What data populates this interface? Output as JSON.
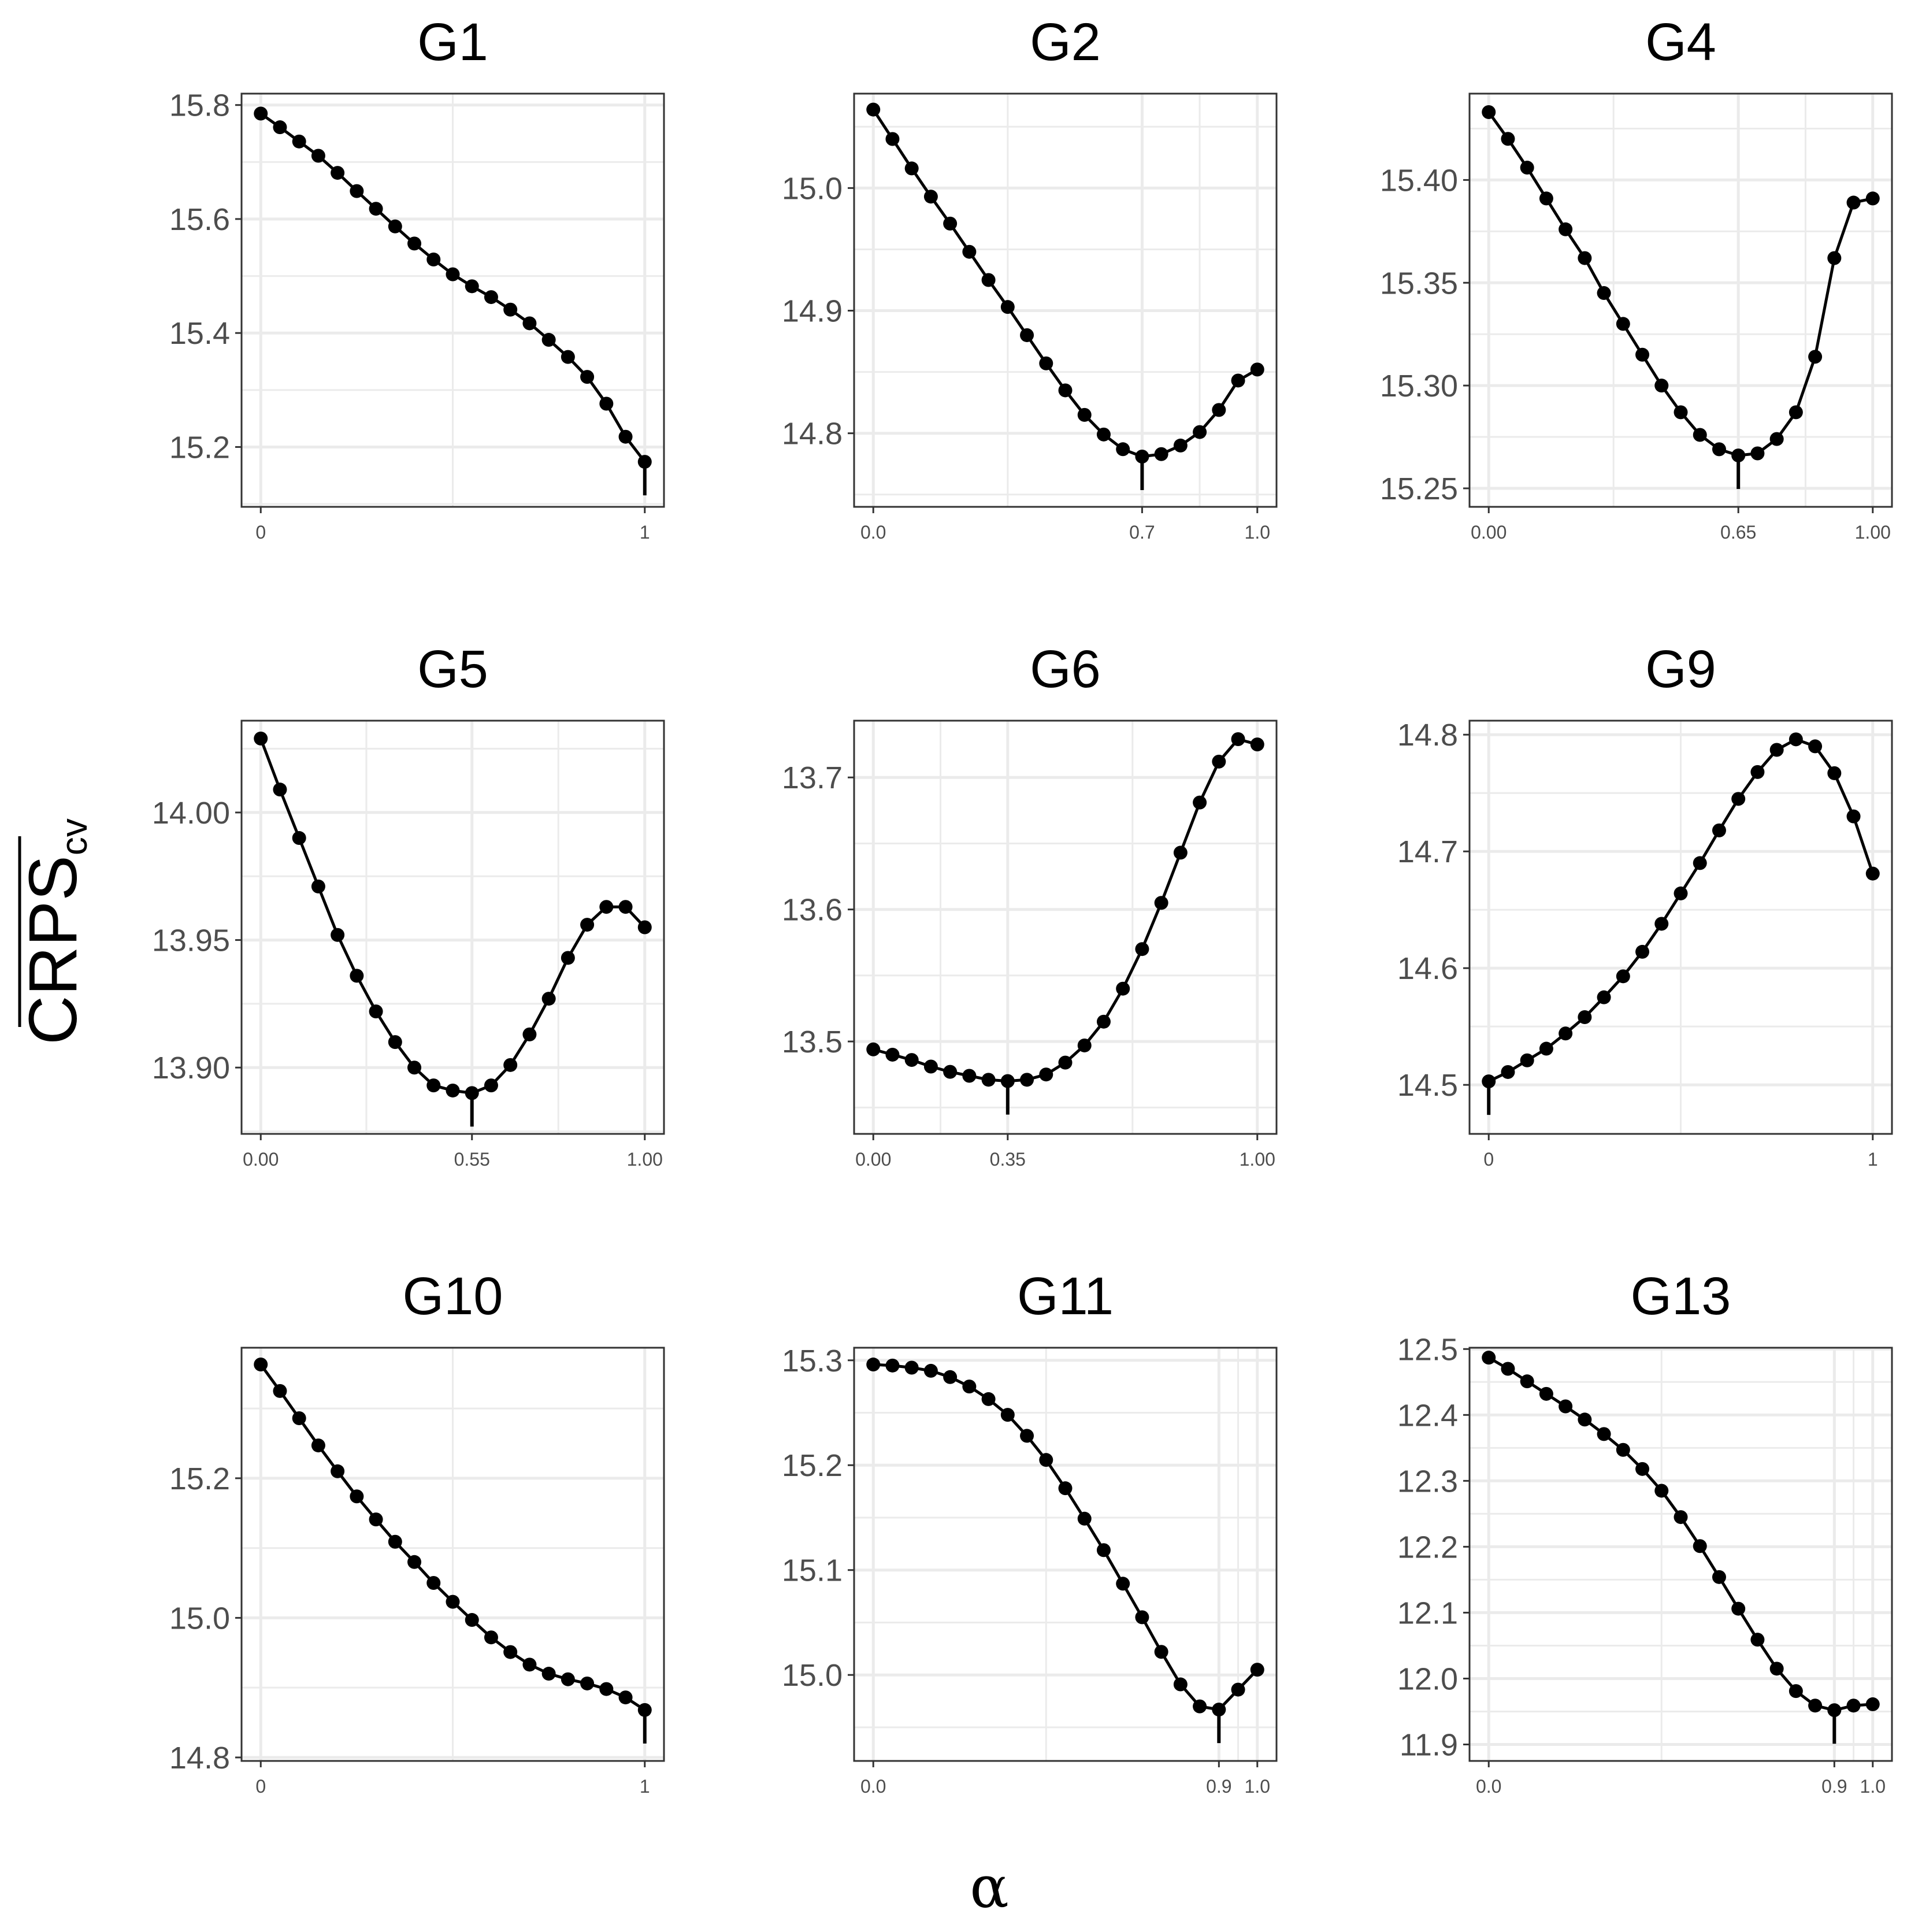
{
  "figure": {
    "y_label": "CRPS",
    "y_label_subscript": "cv",
    "x_label": "α"
  },
  "chart_data": [
    {
      "type": "line",
      "title": "G1",
      "x": [
        0,
        0.05,
        0.1,
        0.15,
        0.2,
        0.25,
        0.3,
        0.35,
        0.4,
        0.45,
        0.5,
        0.55,
        0.6,
        0.65,
        0.7,
        0.75,
        0.8,
        0.85,
        0.9,
        0.95,
        1
      ],
      "values": [
        15.785,
        15.761,
        15.736,
        15.711,
        15.681,
        15.649,
        15.618,
        15.587,
        15.557,
        15.529,
        15.503,
        15.482,
        15.463,
        15.441,
        15.417,
        15.388,
        15.358,
        15.323,
        15.276,
        15.218,
        15.174
      ],
      "xlim": [
        -0.05,
        1.05
      ],
      "ylim": [
        15.095,
        15.82
      ],
      "yticks": [
        15.2,
        15.4,
        15.6,
        15.8
      ],
      "ytick_labels": [
        "15.2",
        "15.4",
        "15.6",
        "15.8"
      ],
      "xticks": [
        0,
        1
      ],
      "xtick_labels": [
        "0",
        "1"
      ],
      "optimum_alpha": 1
    },
    {
      "type": "line",
      "title": "G2",
      "x": [
        0,
        0.05,
        0.1,
        0.15,
        0.2,
        0.25,
        0.3,
        0.35,
        0.4,
        0.45,
        0.5,
        0.55,
        0.6,
        0.65,
        0.7,
        0.75,
        0.8,
        0.85,
        0.9,
        0.95,
        1
      ],
      "values": [
        15.064,
        15.04,
        15.016,
        14.993,
        14.971,
        14.948,
        14.925,
        14.903,
        14.88,
        14.857,
        14.835,
        14.815,
        14.799,
        14.787,
        14.781,
        14.783,
        14.79,
        14.801,
        14.819,
        14.843,
        14.852
      ],
      "xlim": [
        -0.05,
        1.05
      ],
      "ylim": [
        14.74,
        15.077
      ],
      "yticks": [
        14.8,
        14.9,
        15.0
      ],
      "ytick_labels": [
        "14.8",
        "14.9",
        "15.0"
      ],
      "xticks": [
        0,
        0.7,
        1
      ],
      "xtick_labels": [
        "0.0",
        "0.7",
        "1.0"
      ],
      "optimum_alpha": 0.7
    },
    {
      "type": "line",
      "title": "G4",
      "x": [
        0,
        0.05,
        0.1,
        0.15,
        0.2,
        0.25,
        0.3,
        0.35,
        0.4,
        0.45,
        0.5,
        0.55,
        0.6,
        0.65,
        0.7,
        0.75,
        0.8,
        0.85,
        0.9,
        0.95,
        1
      ],
      "values": [
        15.433,
        15.42,
        15.406,
        15.391,
        15.376,
        15.362,
        15.345,
        15.33,
        15.315,
        15.3,
        15.287,
        15.276,
        15.269,
        15.266,
        15.267,
        15.274,
        15.287,
        15.314,
        15.362,
        15.389,
        15.391
      ],
      "xlim": [
        -0.05,
        1.05
      ],
      "ylim": [
        15.241,
        15.442
      ],
      "yticks": [
        15.25,
        15.3,
        15.35,
        15.4
      ],
      "ytick_labels": [
        "15.25",
        "15.30",
        "15.35",
        "15.40"
      ],
      "xticks": [
        0,
        0.65,
        1
      ],
      "xtick_labels": [
        "0.00",
        "0.65",
        "1.00"
      ],
      "optimum_alpha": 0.65
    },
    {
      "type": "line",
      "title": "G5",
      "x": [
        0,
        0.05,
        0.1,
        0.15,
        0.2,
        0.25,
        0.3,
        0.35,
        0.4,
        0.45,
        0.5,
        0.55,
        0.6,
        0.65,
        0.7,
        0.75,
        0.8,
        0.85,
        0.9,
        0.95,
        1
      ],
      "values": [
        14.029,
        14.009,
        13.99,
        13.971,
        13.952,
        13.936,
        13.922,
        13.91,
        13.9,
        13.893,
        13.891,
        13.89,
        13.893,
        13.901,
        13.913,
        13.927,
        13.943,
        13.956,
        13.963,
        13.963,
        13.955
      ],
      "xlim": [
        -0.05,
        1.05
      ],
      "ylim": [
        13.874,
        14.036
      ],
      "yticks": [
        13.9,
        13.95,
        14.0
      ],
      "ytick_labels": [
        "13.90",
        "13.95",
        "14.00"
      ],
      "xticks": [
        0,
        0.55,
        1
      ],
      "xtick_labels": [
        "0.00",
        "0.55",
        "1.00"
      ],
      "optimum_alpha": 0.55
    },
    {
      "type": "line",
      "title": "G6",
      "x": [
        0,
        0.05,
        0.1,
        0.15,
        0.2,
        0.25,
        0.3,
        0.35,
        0.4,
        0.45,
        0.5,
        0.55,
        0.6,
        0.65,
        0.7,
        0.75,
        0.8,
        0.85,
        0.9,
        0.95,
        1
      ],
      "values": [
        13.494,
        13.49,
        13.486,
        13.481,
        13.477,
        13.474,
        13.471,
        13.47,
        13.471,
        13.475,
        13.484,
        13.497,
        13.515,
        13.54,
        13.57,
        13.605,
        13.643,
        13.681,
        13.712,
        13.729,
        13.725
      ],
      "xlim": [
        -0.05,
        1.05
      ],
      "ylim": [
        13.43,
        13.743
      ],
      "yticks": [
        13.5,
        13.6,
        13.7
      ],
      "ytick_labels": [
        "13.5",
        "13.6",
        "13.7"
      ],
      "xticks": [
        0,
        0.35,
        1
      ],
      "xtick_labels": [
        "0.00",
        "0.35",
        "1.00"
      ],
      "optimum_alpha": 0.35
    },
    {
      "type": "line",
      "title": "G9",
      "x": [
        0,
        0.05,
        0.1,
        0.15,
        0.2,
        0.25,
        0.3,
        0.35,
        0.4,
        0.45,
        0.5,
        0.55,
        0.6,
        0.65,
        0.7,
        0.75,
        0.8,
        0.85,
        0.9,
        0.95,
        1
      ],
      "values": [
        14.503,
        14.511,
        14.521,
        14.531,
        14.544,
        14.558,
        14.575,
        14.593,
        14.614,
        14.638,
        14.664,
        14.69,
        14.718,
        14.745,
        14.768,
        14.787,
        14.796,
        14.79,
        14.767,
        14.73,
        14.681
      ],
      "xlim": [
        -0.05,
        1.05
      ],
      "ylim": [
        14.458,
        14.812
      ],
      "yticks": [
        14.5,
        14.6,
        14.7,
        14.8
      ],
      "ytick_labels": [
        "14.5",
        "14.6",
        "14.7",
        "14.8"
      ],
      "xticks": [
        0,
        1
      ],
      "xtick_labels": [
        "0",
        "1"
      ],
      "optimum_alpha": 0
    },
    {
      "type": "line",
      "title": "G10",
      "x": [
        0,
        0.05,
        0.1,
        0.15,
        0.2,
        0.25,
        0.3,
        0.35,
        0.4,
        0.45,
        0.5,
        0.55,
        0.6,
        0.65,
        0.7,
        0.75,
        0.8,
        0.85,
        0.9,
        0.95,
        1
      ],
      "values": [
        15.363,
        15.325,
        15.286,
        15.247,
        15.21,
        15.174,
        15.141,
        15.109,
        15.08,
        15.05,
        15.023,
        14.997,
        14.972,
        14.951,
        14.933,
        14.92,
        14.912,
        14.906,
        14.898,
        14.886,
        14.868
      ],
      "xlim": [
        -0.05,
        1.05
      ],
      "ylim": [
        14.795,
        15.387
      ],
      "yticks": [
        14.8,
        15.0,
        15.2
      ],
      "ytick_labels": [
        "14.8",
        "15.0",
        "15.2"
      ],
      "xticks": [
        0,
        1
      ],
      "xtick_labels": [
        "0",
        "1"
      ],
      "optimum_alpha": 1
    },
    {
      "type": "line",
      "title": "G11",
      "x": [
        0,
        0.05,
        0.1,
        0.15,
        0.2,
        0.25,
        0.3,
        0.35,
        0.4,
        0.45,
        0.5,
        0.55,
        0.6,
        0.65,
        0.7,
        0.75,
        0.8,
        0.85,
        0.9,
        0.95,
        1
      ],
      "values": [
        15.296,
        15.295,
        15.293,
        15.29,
        15.284,
        15.275,
        15.263,
        15.248,
        15.228,
        15.205,
        15.178,
        15.149,
        15.119,
        15.087,
        15.055,
        15.022,
        14.991,
        14.97,
        14.967,
        14.986,
        15.005
      ],
      "xlim": [
        -0.05,
        1.05
      ],
      "ylim": [
        14.918,
        15.312
      ],
      "yticks": [
        15.0,
        15.1,
        15.2,
        15.3
      ],
      "ytick_labels": [
        "15.0",
        "15.1",
        "15.2",
        "15.3"
      ],
      "xticks": [
        0,
        0.9,
        1
      ],
      "xtick_labels": [
        "0.0",
        "0.9",
        "1.0"
      ],
      "optimum_alpha": 0.9
    },
    {
      "type": "line",
      "title": "G13",
      "x": [
        0,
        0.05,
        0.1,
        0.15,
        0.2,
        0.25,
        0.3,
        0.35,
        0.4,
        0.45,
        0.5,
        0.55,
        0.6,
        0.65,
        0.7,
        0.75,
        0.8,
        0.85,
        0.9,
        0.95,
        1
      ],
      "values": [
        12.487,
        12.47,
        12.451,
        12.432,
        12.413,
        12.393,
        12.371,
        12.347,
        12.318,
        12.285,
        12.245,
        12.201,
        12.154,
        12.106,
        12.059,
        12.015,
        11.981,
        11.959,
        11.952,
        11.959,
        11.961
      ],
      "xlim": [
        -0.05,
        1.05
      ],
      "ylim": [
        11.875,
        12.502
      ],
      "yticks": [
        11.9,
        12.0,
        12.1,
        12.2,
        12.3,
        12.4,
        12.5
      ],
      "ytick_labels": [
        "11.9",
        "12.0",
        "12.1",
        "12.2",
        "12.3",
        "12.4",
        "12.5"
      ],
      "xticks": [
        0,
        0.9,
        1
      ],
      "xtick_labels": [
        "0.0",
        "0.9",
        "1.0"
      ],
      "optimum_alpha": 0.9
    }
  ]
}
